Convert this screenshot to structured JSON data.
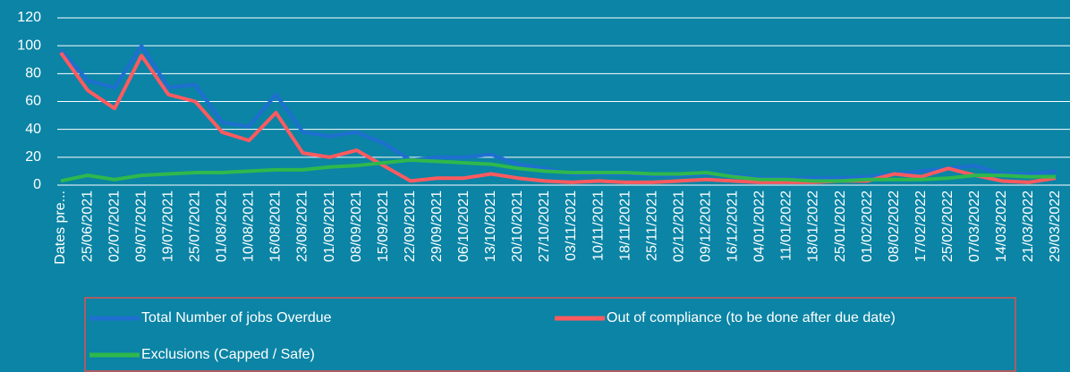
{
  "chart_data": {
    "type": "line",
    "categories": [
      "Dates pre...",
      "25/06/2021",
      "02/07/2021",
      "09/07/2021",
      "19/07/2021",
      "25/07/2021",
      "01/08/2021",
      "10/08/2021",
      "16/08/2021",
      "23/08/2021",
      "01/09/2021",
      "08/09/2021",
      "15/09/2021",
      "22/09/2021",
      "29/09/2021",
      "06/10/2021",
      "13/10/2021",
      "20/10/2021",
      "27/10/2021",
      "03/11/2021",
      "10/11/2021",
      "18/11/2021",
      "25/11/2021",
      "02/12/2021",
      "09/12/2021",
      "16/12/2021",
      "04/01/2022",
      "11/01/2022",
      "18/01/2022",
      "25/01/2022",
      "01/02/2022",
      "08/02/2022",
      "17/02/2022",
      "25/02/2022",
      "07/03/2022",
      "14/03/2022",
      "21/03/2022",
      "29/03/2022"
    ],
    "series": [
      {
        "name": "Total Number of jobs Overdue",
        "color": "#1f6fd0",
        "values": [
          97,
          75,
          70,
          100,
          70,
          72,
          45,
          42,
          65,
          38,
          35,
          38,
          30,
          18,
          20,
          20,
          22,
          15,
          12,
          8,
          8,
          8,
          7,
          7,
          8,
          7,
          5,
          5,
          5,
          5,
          6,
          8,
          10,
          12,
          14,
          8,
          8,
          10
        ]
      },
      {
        "name": "Out of compliance (to be done after due date)",
        "color": "#ff5a5f",
        "values": [
          95,
          68,
          55,
          93,
          65,
          60,
          38,
          32,
          52,
          23,
          20,
          25,
          14,
          3,
          5,
          5,
          8,
          5,
          3,
          2,
          3,
          2,
          2,
          3,
          4,
          3,
          2,
          2,
          2,
          3,
          3,
          8,
          6,
          12,
          7,
          3,
          2,
          5
        ]
      },
      {
        "name": "Exclusions (Capped / Safe)",
        "color": "#2fb84c",
        "values": [
          3,
          7,
          4,
          7,
          8,
          9,
          9,
          10,
          11,
          11,
          13,
          14,
          16,
          18,
          17,
          16,
          15,
          12,
          10,
          9,
          9,
          9,
          8,
          8,
          9,
          6,
          4,
          4,
          3,
          3,
          4,
          4,
          4,
          5,
          7,
          7,
          6,
          6
        ]
      }
    ],
    "ylim": [
      0,
      120
    ],
    "yticks": [
      0,
      20,
      40,
      60,
      80,
      100,
      120
    ],
    "grid": true,
    "legend": "bottom"
  }
}
